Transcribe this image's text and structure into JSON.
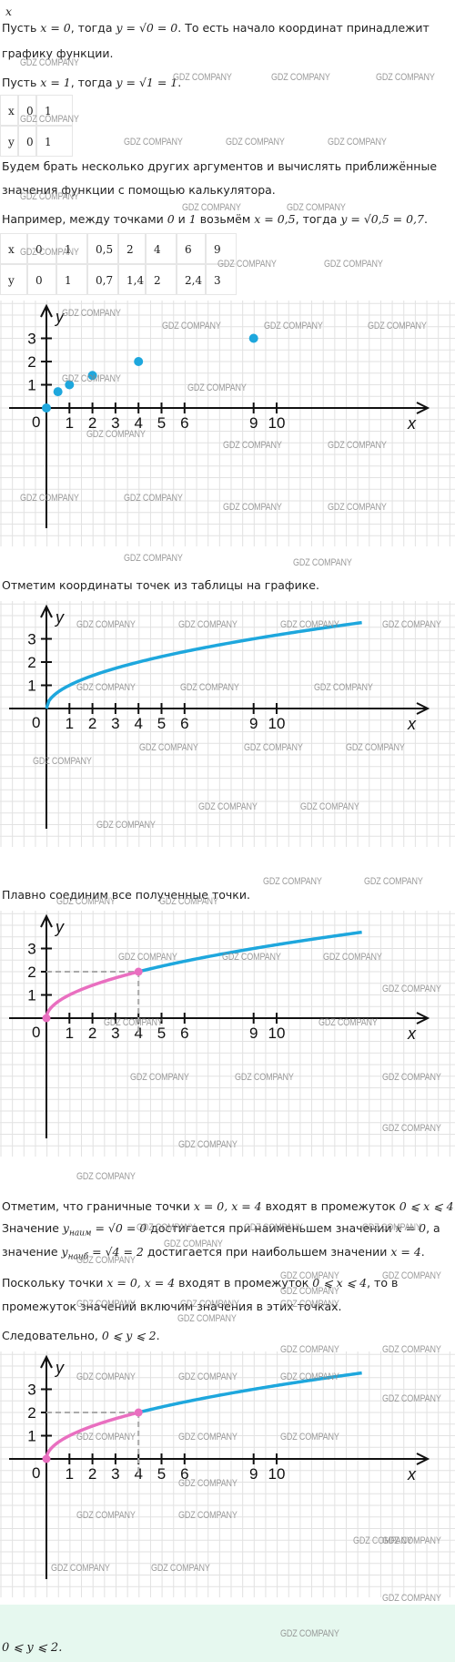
{
  "top_var": "x",
  "para1": {
    "pre": "Пусть ",
    "math1": "x = 0",
    "mid": ", тогда ",
    "math2": "y = √0 = 0",
    "post": ". То есть начало координат принадлежит"
  },
  "para1b": "графику функции.",
  "para2": {
    "pre": "Пусть ",
    "math1": "x = 1",
    "mid": ", тогда ",
    "math2": "y = √1 = 1",
    "post": "."
  },
  "table1": {
    "row_x": [
      "x",
      "0",
      "1"
    ],
    "row_y": [
      "y",
      "0",
      "1"
    ]
  },
  "para3": "Будем брать несколько других аргументов и вычислять приближённые",
  "para3b": "значения функции с помощью калькулятора.",
  "para4": {
    "pre": "Например, между точками ",
    "m0": "0",
    "and": " и ",
    "m1": "1",
    "mid": " возьмём ",
    "math1": "x = 0,5",
    "mid2": ", тогда ",
    "math2": "y = √0,5 = 0,7",
    "post": "."
  },
  "table2": {
    "row_x": [
      "x",
      "0",
      "1",
      "0,5",
      "2",
      "4",
      "6",
      "9"
    ],
    "row_y": [
      "y",
      "0",
      "1",
      "0,7",
      "1,4",
      "2",
      "2,4",
      "3"
    ]
  },
  "caption1": "Отметим координаты точек из таблицы на графике.",
  "caption2": "Плавно соединим все полученные точки.",
  "para5": {
    "pre": "Отметим, что граничные точки ",
    "math1": "x = 0, x = 4",
    "mid": " входят в промежуток ",
    "math2": "0 ⩽ x ⩽ 4",
    "post": "."
  },
  "para6": {
    "pre": "Значение ",
    "math1": "y",
    "sub1": "наим",
    "math1b": " = √0 = 0",
    "mid": " достигается при наименьшем значении ",
    "math2": "x = 0",
    "post": ", а"
  },
  "para6b": {
    "pre": "значение ",
    "math1": "y",
    "sub1": "наиб",
    "math1b": " = √4 = 2",
    "mid": " достигается при наибольшем значении ",
    "math2": "x = 4",
    "post": "."
  },
  "para7": {
    "pre": "Поскольку точки ",
    "math1": "x = 0, x = 4",
    "mid": " входят в промежуток ",
    "math2": "0 ⩽ x ⩽ 4",
    "post": ", то в"
  },
  "para7b": "промежуток значений включим значения в этих точках.",
  "para8": {
    "pre": "Следовательно, ",
    "math": "0 ⩽ y ⩽ 2",
    "post": "."
  },
  "answer": "0 ⩽ y ⩽ 2.",
  "watermark": "GDZ COMPANY",
  "axis": {
    "x_label": "x",
    "y_label": "y",
    "origin": "0",
    "x_ticks": [
      "1",
      "2",
      "3",
      "4",
      "5",
      "6",
      "9",
      "10"
    ],
    "y_ticks": [
      "1",
      "2",
      "3"
    ]
  },
  "chart_data": [
    {
      "type": "scatter",
      "x": [
        0,
        0.5,
        1,
        2,
        4,
        9
      ],
      "y": [
        0,
        0.7,
        1,
        1.4,
        2,
        3
      ]
    },
    {
      "type": "line",
      "function": "y = √x",
      "x": [
        0,
        0.5,
        1,
        2,
        4,
        6,
        9,
        14
      ],
      "y": [
        0,
        0.7,
        1,
        1.4,
        2,
        2.4,
        3,
        3.74
      ]
    },
    {
      "type": "line",
      "function": "y = √x",
      "highlight_interval": [
        0,
        4
      ],
      "highlight_range": [
        0,
        2
      ]
    },
    {
      "type": "line",
      "function": "y = √x",
      "highlight_interval": [
        0,
        4
      ],
      "highlight_range": [
        0,
        2
      ]
    }
  ],
  "colors": {
    "curve": "#1ea7dd",
    "highlight": "#e96fc0",
    "dashed": "#aaaaaa",
    "grid": "#e2e2e2",
    "answer_bg": "#e6f8ef"
  }
}
